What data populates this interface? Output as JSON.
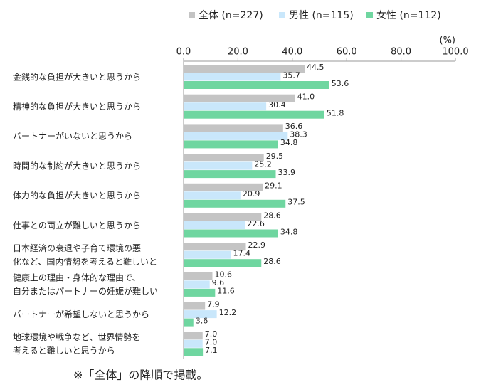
{
  "chart_data": {
    "type": "bar",
    "orientation": "horizontal",
    "categories": [
      [
        "金銭的な負担が大きいと思うから"
      ],
      [
        "精神的な負担が大きいと思うから"
      ],
      [
        "パートナーがいないと思うから"
      ],
      [
        "時間的な制約が大きいと思うから"
      ],
      [
        "体力的な負担が大きいと思うから"
      ],
      [
        "仕事との両立が難しいと思うから"
      ],
      [
        "日本経済の衰退や子育て環境の悪",
        "化など、国内情勢を考えると難しいと"
      ],
      [
        "健康上の理由・身体的な理由で、",
        "自分またはパートナーの妊娠が難しい"
      ],
      [
        "パートナーが希望しないと思うから"
      ],
      [
        "地球環境や戦争など、世界情勢を",
        "考えると難しいと思うから"
      ]
    ],
    "series": [
      {
        "name": "全体 (n=227)",
        "color": "#c4c4c4",
        "values": [
          44.5,
          41.0,
          36.6,
          29.5,
          29.1,
          28.6,
          22.9,
          10.6,
          7.9,
          7.0
        ],
        "value_labels": [
          "44.5",
          "41.0",
          "36.6",
          "29.5",
          "29.1",
          "28.6",
          "22.9",
          "10.6",
          "7.9",
          "7.0"
        ]
      },
      {
        "name": "男性 (n=115)",
        "color": "#c9e7fb",
        "values": [
          35.7,
          30.4,
          38.3,
          25.2,
          20.9,
          22.6,
          17.4,
          9.6,
          12.2,
          7.0
        ],
        "value_labels": [
          "35.7",
          "30.4",
          "38.3",
          "25.2",
          "20.9",
          "22.6",
          "17.4",
          "9.6",
          "12.2",
          "7.0"
        ]
      },
      {
        "name": "女性 (n=112)",
        "color": "#6fd6a0",
        "values": [
          53.6,
          51.8,
          34.8,
          33.9,
          37.5,
          34.8,
          28.6,
          11.6,
          3.6,
          7.1
        ],
        "value_labels": [
          "53.6",
          "51.8",
          "34.8",
          "33.9",
          "37.5",
          "34.8",
          "28.6",
          "11.6",
          "3.6",
          "7.1"
        ]
      }
    ],
    "xlim": [
      0,
      100
    ],
    "xticks": [
      {
        "value": 0,
        "label": "0.0"
      },
      {
        "value": 20,
        "label": "20.0"
      },
      {
        "value": 40,
        "label": "40.0"
      },
      {
        "value": 60,
        "label": "60.0"
      },
      {
        "value": 80,
        "label": "80.0"
      },
      {
        "value": 100,
        "label": "100.0"
      }
    ],
    "unit_label": "(%)",
    "grid": false,
    "legend_position": "top",
    "note": "※「全体」の降順で掲載。"
  }
}
